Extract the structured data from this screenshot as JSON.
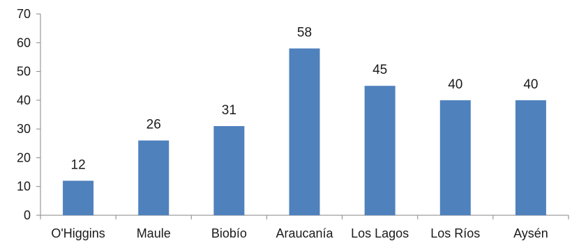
{
  "chart_data": {
    "type": "bar",
    "title": "",
    "xlabel": "",
    "ylabel": "",
    "categories": [
      "O'Higgins",
      "Maule",
      "Biobío",
      "Araucanía",
      "Los Lagos",
      "Los Ríos",
      "Aysén"
    ],
    "values": [
      12,
      26,
      31,
      58,
      45,
      40,
      40
    ],
    "ylim": [
      0,
      70
    ],
    "yticks": [
      0,
      10,
      20,
      30,
      40,
      50,
      60,
      70
    ],
    "grid": false,
    "legend": "none",
    "bar_color": "#4f81bd",
    "data_labels": true
  }
}
